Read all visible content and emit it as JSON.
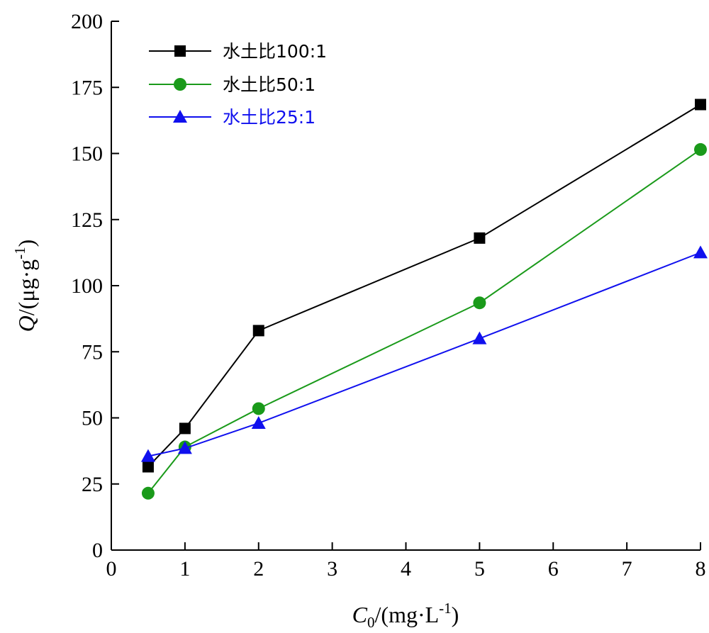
{
  "chart_data": {
    "type": "line",
    "xlabel": {
      "main": "C",
      "sub": "0",
      "unit": "/(mg·L",
      "sup": "-1",
      "close": ")"
    },
    "ylabel": {
      "main": "Q",
      "unit": "/(μg·g",
      "sup": "-1",
      "close": ")"
    },
    "xlim": [
      0,
      8
    ],
    "ylim": [
      0,
      200
    ],
    "xticks": [
      "0",
      "1",
      "2",
      "3",
      "4",
      "5",
      "6",
      "7",
      "8"
    ],
    "yticks": [
      "0",
      "25",
      "50",
      "75",
      "100",
      "125",
      "150",
      "175",
      "200"
    ],
    "grid": false,
    "legend_position": "top-left",
    "x": [
      0.5,
      1,
      2,
      5,
      8
    ],
    "series": [
      {
        "name": "水土比100:1",
        "marker": "square",
        "color": "#000000",
        "values": [
          31.5,
          46,
          83,
          118,
          168.5
        ]
      },
      {
        "name": "水土比50:1",
        "marker": "circle",
        "color": "#1a9a1a",
        "values": [
          21.5,
          39,
          53.5,
          93.5,
          151.5
        ]
      },
      {
        "name": "水土比25:1",
        "marker": "triangle",
        "color": "#1010ee",
        "values": [
          35.5,
          38.5,
          48,
          80,
          112.5
        ]
      }
    ]
  }
}
